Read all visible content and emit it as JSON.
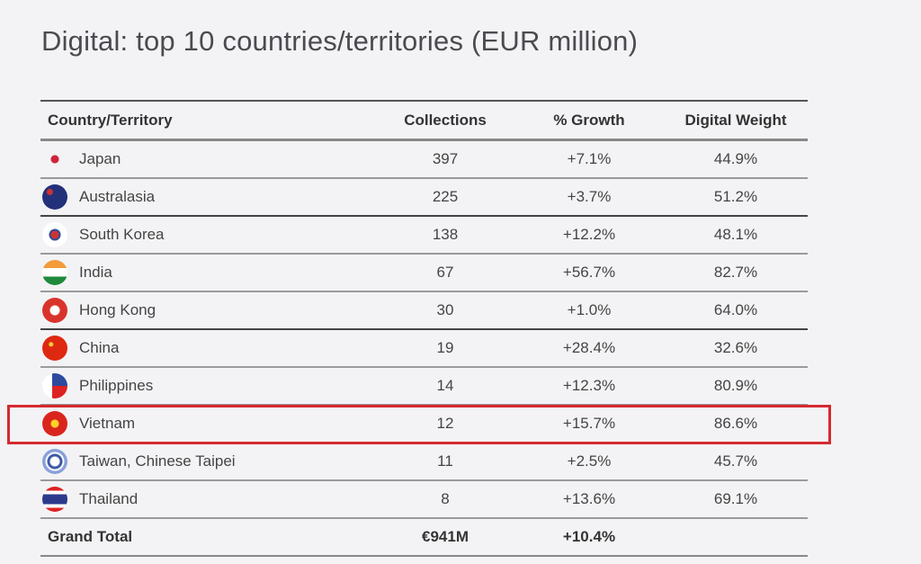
{
  "title": "Digital: top 10 countries/territories (EUR million)",
  "headers": {
    "country": "Country/Territory",
    "collections": "Collections",
    "growth": "% Growth",
    "weight": "Digital Weight"
  },
  "rows": [
    {
      "country": "Japan",
      "collections": "397",
      "growth": "+7.1%",
      "weight": "44.9%",
      "flag": "japan-flag-icon"
    },
    {
      "country": "Australasia",
      "collections": "225",
      "growth": "+3.7%",
      "weight": "51.2%",
      "flag": "australasia-flag-icon"
    },
    {
      "country": "South Korea",
      "collections": "138",
      "growth": "+12.2%",
      "weight": "48.1%",
      "flag": "south-korea-flag-icon"
    },
    {
      "country": "India",
      "collections": "67",
      "growth": "+56.7%",
      "weight": "82.7%",
      "flag": "india-flag-icon"
    },
    {
      "country": "Hong Kong",
      "collections": "30",
      "growth": "+1.0%",
      "weight": "64.0%",
      "flag": "hong-kong-flag-icon"
    },
    {
      "country": "China",
      "collections": "19",
      "growth": "+28.4%",
      "weight": "32.6%",
      "flag": "china-flag-icon"
    },
    {
      "country": "Philippines",
      "collections": "14",
      "growth": "+12.3%",
      "weight": "80.9%",
      "flag": "philippines-flag-icon"
    },
    {
      "country": "Vietnam",
      "collections": "12",
      "growth": "+15.7%",
      "weight": "86.6%",
      "flag": "vietnam-flag-icon"
    },
    {
      "country": "Taiwan, Chinese Taipei",
      "collections": "11",
      "growth": "+2.5%",
      "weight": "45.7%",
      "flag": "taiwan-flag-icon"
    },
    {
      "country": "Thailand",
      "collections": "8",
      "growth": "+13.6%",
      "weight": "69.1%",
      "flag": "thailand-flag-icon"
    }
  ],
  "total": {
    "label": "Grand Total",
    "collections": "€941M",
    "growth": "+10.4%"
  },
  "highlight_color": "#d42a2f"
}
